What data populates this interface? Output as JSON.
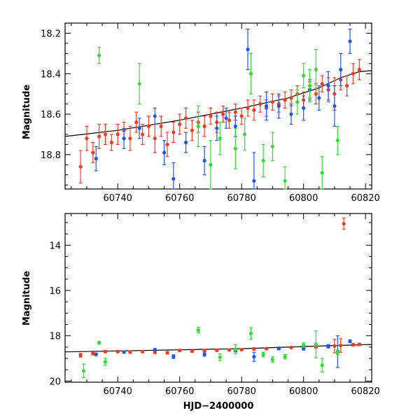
{
  "chart_data": [
    {
      "type": "scatter",
      "panel": "top",
      "xlabel": "",
      "ylabel": "Magnitude",
      "xlim": [
        60723,
        60822
      ],
      "ylim": [
        18.97,
        18.15
      ],
      "y_inverted": true,
      "x_ticks": [
        60740,
        60760,
        60780,
        60800,
        60820
      ],
      "y_ticks": [
        18.2,
        18.4,
        18.6,
        18.8
      ],
      "x_tick_labels": [
        "60740",
        "60760",
        "60780",
        "60800",
        "60820"
      ],
      "y_tick_labels": [
        "18.2",
        "18.4",
        "18.6",
        "18.8"
      ],
      "grid": false,
      "fit_line": {
        "color": "#000000",
        "x": [
          60723,
          60740,
          60760,
          60780,
          60795,
          60805,
          60812,
          60818,
          60822
        ],
        "y": [
          18.71,
          18.68,
          18.63,
          18.57,
          18.52,
          18.47,
          18.42,
          18.39,
          18.385
        ]
      },
      "series": [
        {
          "color": "#ff3b1f",
          "x": [
            60728,
            60730,
            60732,
            60734,
            60736,
            60738,
            60740,
            60742,
            60744,
            60746,
            60748,
            60750,
            60752,
            60754,
            60756,
            60758,
            60760,
            60762,
            60764,
            60766,
            60768,
            60770,
            60772,
            60774,
            60776,
            60778,
            60780,
            60782,
            60784,
            60786,
            60788,
            60790,
            60792,
            60794,
            60796,
            60798,
            60800,
            60802,
            60804,
            60806,
            60808,
            60810,
            60812,
            60814,
            60816,
            60818
          ],
          "y": [
            18.86,
            18.72,
            18.79,
            18.71,
            18.7,
            18.74,
            18.7,
            18.68,
            18.72,
            18.64,
            18.7,
            18.66,
            18.72,
            18.66,
            18.75,
            18.69,
            18.65,
            18.62,
            18.68,
            18.64,
            18.66,
            18.61,
            18.64,
            18.6,
            18.63,
            18.59,
            18.61,
            18.57,
            18.58,
            18.55,
            18.57,
            18.54,
            18.55,
            18.53,
            18.52,
            18.5,
            18.53,
            18.48,
            18.5,
            18.45,
            18.48,
            18.5,
            18.43,
            18.46,
            18.4,
            18.38
          ],
          "err": [
            0.08,
            0.06,
            0.05,
            0.06,
            0.05,
            0.04,
            0.05,
            0.04,
            0.06,
            0.05,
            0.05,
            0.05,
            0.07,
            0.05,
            0.06,
            0.05,
            0.05,
            0.05,
            0.05,
            0.05,
            0.05,
            0.04,
            0.05,
            0.04,
            0.04,
            0.04,
            0.04,
            0.04,
            0.05,
            0.04,
            0.04,
            0.04,
            0.04,
            0.04,
            0.04,
            0.04,
            0.04,
            0.04,
            0.05,
            0.04,
            0.06,
            0.08,
            0.05,
            0.05,
            0.05,
            0.05
          ]
        },
        {
          "color": "#2255ee",
          "x": [
            60733,
            60742,
            60747,
            60752,
            60755,
            60758,
            60762,
            60768,
            60772,
            60775,
            60778,
            60782,
            60784,
            60788,
            60792,
            60796,
            60800,
            60802,
            60805,
            60808,
            60810,
            60812,
            60815
          ],
          "y": [
            18.82,
            18.72,
            18.67,
            18.61,
            18.79,
            18.92,
            18.74,
            18.83,
            18.67,
            18.62,
            18.66,
            18.28,
            18.93,
            18.56,
            18.56,
            18.6,
            18.57,
            18.48,
            18.52,
            18.46,
            18.56,
            18.38,
            18.24
          ],
          "err": [
            0.06,
            0.05,
            0.05,
            0.04,
            0.06,
            0.08,
            0.05,
            0.07,
            0.06,
            0.05,
            0.05,
            0.1,
            0.14,
            0.07,
            0.06,
            0.05,
            0.06,
            0.05,
            0.06,
            0.07,
            0.1,
            0.08,
            0.06
          ]
        },
        {
          "color": "#33dd33",
          "x": [
            60734,
            60747,
            60766,
            60770,
            60773,
            60778,
            60781,
            60783,
            60787,
            60790,
            60794,
            60798,
            60800,
            60802,
            60804,
            60806,
            60811
          ],
          "y": [
            18.31,
            18.45,
            18.66,
            18.85,
            18.72,
            18.77,
            18.7,
            18.4,
            18.83,
            18.76,
            18.93,
            18.54,
            18.41,
            18.46,
            18.38,
            18.89,
            18.73
          ],
          "err": [
            0.04,
            0.1,
            0.1,
            0.12,
            0.08,
            0.1,
            0.08,
            0.1,
            0.08,
            0.07,
            0.07,
            0.06,
            0.06,
            0.08,
            0.1,
            0.08,
            0.07
          ]
        }
      ]
    },
    {
      "type": "scatter",
      "panel": "bottom",
      "xlabel": "HJD−2400000",
      "ylabel": "Magnitude",
      "xlim": [
        60723,
        60822
      ],
      "ylim": [
        20.05,
        12.6
      ],
      "y_inverted": true,
      "x_ticks": [
        60740,
        60760,
        60780,
        60800,
        60820
      ],
      "y_ticks": [
        14,
        16,
        18,
        20
      ],
      "x_tick_labels": [
        "60740",
        "60760",
        "60780",
        "60800",
        "60820"
      ],
      "y_tick_labels": [
        "14",
        "16",
        "18",
        "20"
      ],
      "grid": false,
      "fit_line": {
        "color": "#000000",
        "x": [
          60723,
          60780,
          60810,
          60822
        ],
        "y": [
          18.71,
          18.57,
          18.43,
          18.385
        ]
      },
      "series": [
        {
          "color": "#ff3b1f",
          "x": [
            60728,
            60732,
            60736,
            60740,
            60744,
            60748,
            60752,
            60756,
            60760,
            60764,
            60768,
            60772,
            60776,
            60780,
            60784,
            60788,
            60792,
            60796,
            60800,
            60804,
            60808,
            60810,
            60812,
            60813,
            60816,
            60818
          ],
          "y": [
            18.86,
            18.79,
            18.7,
            18.7,
            18.72,
            18.7,
            18.72,
            18.75,
            18.65,
            18.68,
            18.66,
            18.64,
            18.63,
            18.61,
            18.58,
            18.57,
            18.55,
            18.52,
            18.53,
            18.5,
            18.48,
            18.45,
            18.43,
            13.05,
            18.4,
            18.38
          ],
          "err": [
            0.08,
            0.05,
            0.05,
            0.05,
            0.06,
            0.05,
            0.07,
            0.06,
            0.05,
            0.05,
            0.05,
            0.05,
            0.04,
            0.04,
            0.05,
            0.04,
            0.04,
            0.04,
            0.04,
            0.05,
            0.06,
            0.3,
            0.3,
            0.25,
            0.05,
            0.05
          ]
        },
        {
          "color": "#2255ee",
          "x": [
            60733,
            60742,
            60752,
            60758,
            60768,
            60778,
            60784,
            60792,
            60800,
            60808,
            60811,
            60815
          ],
          "y": [
            18.82,
            18.72,
            18.61,
            18.92,
            18.83,
            18.66,
            18.93,
            18.56,
            18.57,
            18.46,
            18.7,
            18.24
          ],
          "err": [
            0.06,
            0.05,
            0.04,
            0.08,
            0.07,
            0.05,
            0.2,
            0.06,
            0.06,
            0.07,
            0.7,
            0.06
          ]
        },
        {
          "color": "#33dd33",
          "x": [
            60729,
            60734,
            60736,
            60766,
            60773,
            60778,
            60783,
            60787,
            60790,
            60794,
            60800,
            60804,
            60806,
            60811
          ],
          "y": [
            19.55,
            18.31,
            19.15,
            17.75,
            18.95,
            18.6,
            17.9,
            18.83,
            19.05,
            18.93,
            18.41,
            18.38,
            19.3,
            18.73
          ],
          "err": [
            0.3,
            0.06,
            0.15,
            0.12,
            0.15,
            0.2,
            0.25,
            0.1,
            0.12,
            0.1,
            0.1,
            0.6,
            0.3,
            0.1
          ]
        }
      ]
    }
  ]
}
